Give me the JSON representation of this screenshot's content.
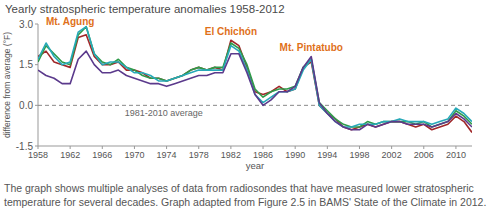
{
  "chart_data": {
    "type": "line",
    "title": "Yearly stratospheric temperature anomalies 1958-2012",
    "y_label": "difference from average (°F)",
    "x_label": "year",
    "caption": "The graph shows multiple analyses of data from radiosondes that have measured lower stratospheric temperature for several decades. Graph adapted from Figure 2.5 in BAMS' State of the Climate in 2012.",
    "x": [
      1958,
      1959,
      1960,
      1961,
      1962,
      1963,
      1964,
      1965,
      1966,
      1967,
      1968,
      1969,
      1970,
      1971,
      1972,
      1973,
      1974,
      1975,
      1976,
      1977,
      1978,
      1979,
      1980,
      1981,
      1982,
      1983,
      1984,
      1985,
      1986,
      1987,
      1988,
      1989,
      1990,
      1991,
      1992,
      1993,
      1994,
      1995,
      1996,
      1997,
      1998,
      1999,
      2000,
      2001,
      2002,
      2003,
      2004,
      2005,
      2006,
      2007,
      2008,
      2009,
      2010,
      2011,
      2012
    ],
    "series": [
      {
        "color": "#a0282a",
        "values": [
          1.8,
          2.0,
          1.6,
          1.5,
          1.4,
          2.5,
          2.6,
          1.8,
          1.5,
          1.5,
          1.6,
          1.3,
          1.3,
          1.2,
          1.0,
          1.0,
          0.9,
          1.0,
          1.1,
          1.3,
          1.4,
          1.3,
          1.4,
          1.3,
          2.4,
          2.2,
          1.4,
          0.5,
          0.4,
          0.5,
          0.7,
          0.5,
          0.6,
          1.4,
          1.6,
          0.0,
          -0.3,
          -0.5,
          -0.8,
          -0.9,
          -0.8,
          -0.7,
          -0.8,
          -0.7,
          -0.6,
          -0.6,
          -0.7,
          -0.8,
          -0.7,
          -0.9,
          -0.8,
          -0.7,
          -0.4,
          -0.6,
          -1.0
        ]
      },
      {
        "color": "#2e9b4a",
        "values": [
          1.6,
          2.2,
          1.9,
          1.6,
          1.5,
          2.6,
          2.9,
          1.9,
          1.6,
          1.5,
          1.7,
          1.4,
          1.3,
          1.1,
          1.0,
          1.0,
          0.9,
          1.0,
          1.1,
          1.3,
          1.4,
          1.3,
          1.4,
          1.4,
          2.3,
          2.1,
          1.5,
          0.6,
          0.3,
          0.5,
          0.6,
          0.6,
          0.7,
          1.4,
          1.7,
          0.1,
          -0.2,
          -0.5,
          -0.7,
          -0.8,
          -0.8,
          -0.6,
          -0.7,
          -0.6,
          -0.6,
          -0.6,
          -0.6,
          -0.7,
          -0.6,
          -0.8,
          -0.7,
          -0.6,
          -0.2,
          -0.4,
          -0.7
        ]
      },
      {
        "color": "#27a9b8",
        "values": [
          1.7,
          2.3,
          1.8,
          1.5,
          1.6,
          2.7,
          2.9,
          1.9,
          1.5,
          1.6,
          1.6,
          1.4,
          1.2,
          1.2,
          1.1,
          0.9,
          0.9,
          1.0,
          1.1,
          1.2,
          1.3,
          1.3,
          1.3,
          1.3,
          2.2,
          2.0,
          1.3,
          0.4,
          0.1,
          0.3,
          0.5,
          0.5,
          0.6,
          1.3,
          1.7,
          0.0,
          -0.3,
          -0.6,
          -0.8,
          -0.8,
          -0.7,
          -0.7,
          -0.7,
          -0.6,
          -0.6,
          -0.5,
          -0.6,
          -0.6,
          -0.6,
          -0.7,
          -0.6,
          -0.5,
          -0.1,
          -0.3,
          -0.6
        ]
      },
      {
        "color": "#5b3a8c",
        "values": [
          1.3,
          1.1,
          1.0,
          0.8,
          0.8,
          1.7,
          2.0,
          1.5,
          1.2,
          1.2,
          1.3,
          1.1,
          1.0,
          0.9,
          0.8,
          0.8,
          0.7,
          0.8,
          0.9,
          1.0,
          1.1,
          1.1,
          1.2,
          1.2,
          1.9,
          1.9,
          1.2,
          0.4,
          0.0,
          0.2,
          0.5,
          0.5,
          0.7,
          1.4,
          1.8,
          0.1,
          -0.3,
          -0.6,
          -0.8,
          -0.9,
          -0.9,
          -0.7,
          -0.8,
          -0.7,
          -0.6,
          -0.6,
          -0.7,
          -0.7,
          -0.7,
          -0.8,
          -0.7,
          -0.6,
          -0.3,
          -0.5,
          -0.8
        ]
      }
    ],
    "xlim": [
      1958,
      2012
    ],
    "xticks": [
      1958,
      1962,
      1966,
      1970,
      1974,
      1978,
      1982,
      1986,
      1990,
      1994,
      1998,
      2002,
      2006,
      2010
    ],
    "ylim": [
      -1.5,
      3.0
    ],
    "yticks": [
      {
        "value": -1.5,
        "label": "-1.5"
      },
      {
        "value": 0,
        "label": "0.0"
      },
      {
        "value": 1.5,
        "label": "1.5"
      },
      {
        "value": 3,
        "label": "3.0"
      }
    ],
    "reference_line": {
      "value": 0,
      "label": "1981-2010 average"
    },
    "annotations": [
      {
        "text": "Mt. Agung",
        "x": 1962,
        "y": 2.95
      },
      {
        "text": "El Chichón",
        "x": 1982,
        "y": 2.6
      },
      {
        "text": "Mt. Pintatubo",
        "x": 1992,
        "y": 2.0
      }
    ],
    "grid": false
  }
}
